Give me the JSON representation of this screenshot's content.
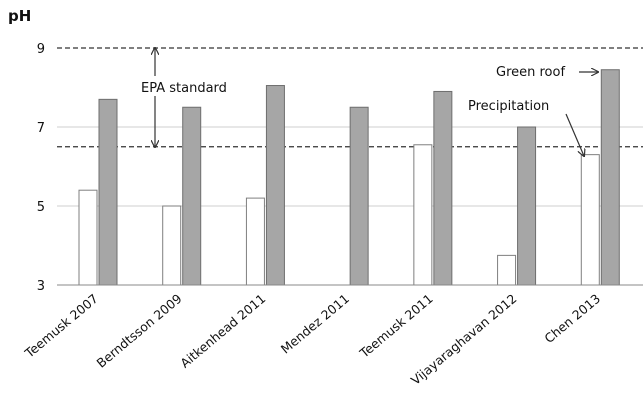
{
  "chart_data": {
    "type": "bar",
    "ylabel": "pH",
    "ylim": [
      3,
      9
    ],
    "yticks": [
      3,
      5,
      7,
      9
    ],
    "grid": true,
    "categories": [
      "Teemusk 2007",
      "Berndtsson 2009",
      "Aitkenhead 2011",
      "Mendez 2011",
      "Teemusk 2011",
      "Vijayaraghavan 2012",
      "Chen 2013"
    ],
    "series": [
      {
        "name": "Precipitation",
        "color": "#ffffff",
        "values": [
          5.4,
          5.0,
          5.2,
          null,
          6.55,
          3.75,
          6.3
        ]
      },
      {
        "name": "Green roof",
        "color": "#a6a6a6",
        "values": [
          7.7,
          7.5,
          8.05,
          7.5,
          7.9,
          7.0,
          8.45
        ]
      }
    ],
    "reference_lines": [
      {
        "value": 9.0,
        "style": "dashed"
      },
      {
        "value": 6.5,
        "style": "dashed"
      }
    ],
    "annotations": {
      "epa": "EPA standard",
      "green_roof": "Green roof",
      "precipitation": "Precipitation"
    }
  }
}
